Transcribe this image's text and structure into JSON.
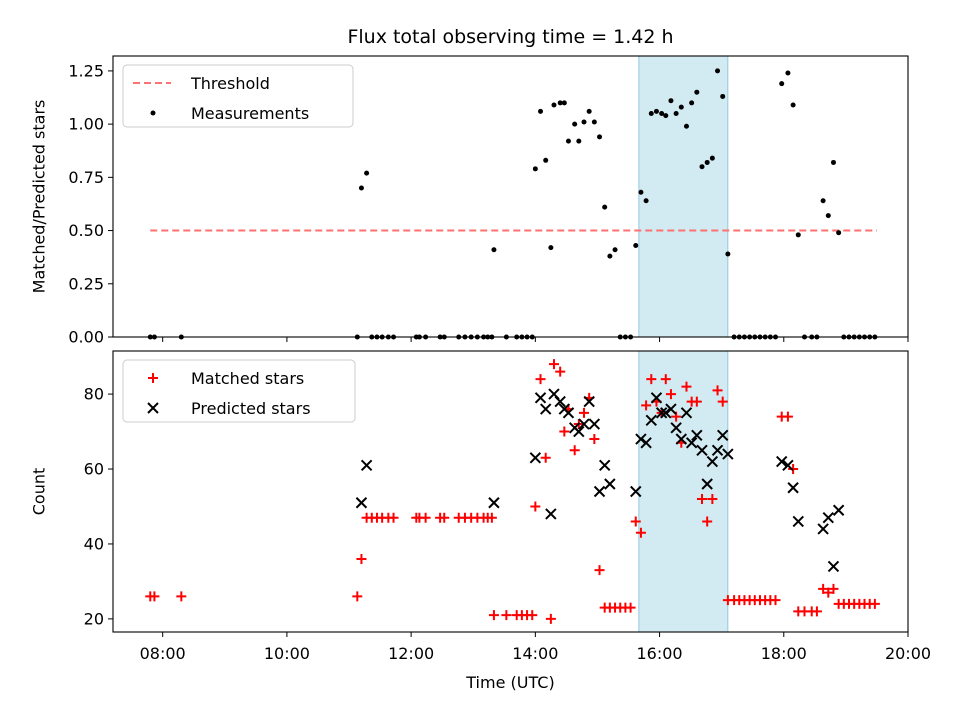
{
  "chart_data": [
    {
      "type": "scatter",
      "title": "Flux total observing time = 1.42 h",
      "xlabel": "",
      "ylabel": "Matched/Predicted stars",
      "xlim": [
        "07:12",
        "20:00"
      ],
      "ylim": [
        0,
        1.32
      ],
      "yticks": [
        "0.00",
        "0.25",
        "0.50",
        "0.75",
        "1.00",
        "1.25"
      ],
      "ytick_values": [
        0,
        0.25,
        0.5,
        0.75,
        1.0,
        1.25
      ],
      "xticks": [
        "08:00",
        "10:00",
        "12:00",
        "14:00",
        "16:00",
        "18:00",
        "20:00"
      ],
      "show_xticklabels": false,
      "grid": false,
      "legend_position": "upper-left",
      "shaded_span": {
        "x": [
          "15:40",
          "17:06"
        ],
        "color": "#add8e6"
      },
      "series": [
        {
          "name": "Threshold",
          "kind": "dashed-line",
          "color": "#ff7070",
          "points": [
            [
              "07:48",
              0.5
            ],
            [
              "19:30",
              0.5
            ]
          ]
        },
        {
          "name": "Measurements",
          "kind": "dot",
          "color": "#000000",
          "points": [
            [
              "07:48",
              0
            ],
            [
              "07:52",
              0
            ],
            [
              "08:18",
              0
            ],
            [
              "11:08",
              0
            ],
            [
              "11:12",
              0.7
            ],
            [
              "11:17",
              0.77
            ],
            [
              "11:22",
              0
            ],
            [
              "11:27",
              0
            ],
            [
              "11:32",
              0
            ],
            [
              "11:38",
              0
            ],
            [
              "11:43",
              0
            ],
            [
              "12:05",
              0
            ],
            [
              "12:08",
              0
            ],
            [
              "12:14",
              0
            ],
            [
              "12:28",
              0
            ],
            [
              "12:32",
              0
            ],
            [
              "12:46",
              0
            ],
            [
              "12:52",
              0
            ],
            [
              "12:58",
              0
            ],
            [
              "13:04",
              0
            ],
            [
              "13:10",
              0
            ],
            [
              "13:14",
              0
            ],
            [
              "13:18",
              0
            ],
            [
              "13:20",
              0.41
            ],
            [
              "13:32",
              0
            ],
            [
              "13:42",
              0
            ],
            [
              "13:47",
              0
            ],
            [
              "13:52",
              0
            ],
            [
              "13:57",
              0
            ],
            [
              "14:00",
              0.79
            ],
            [
              "14:05",
              1.06
            ],
            [
              "14:10",
              0.83
            ],
            [
              "14:15",
              0.42
            ],
            [
              "14:18",
              1.09
            ],
            [
              "14:24",
              1.1
            ],
            [
              "14:28",
              1.1
            ],
            [
              "14:32",
              0.92
            ],
            [
              "14:38",
              1.0
            ],
            [
              "14:42",
              0.92
            ],
            [
              "14:47",
              1.01
            ],
            [
              "14:52",
              1.06
            ],
            [
              "14:57",
              1.01
            ],
            [
              "15:02",
              0.94
            ],
            [
              "15:07",
              0.61
            ],
            [
              "15:12",
              0.38
            ],
            [
              "15:17",
              0.41
            ],
            [
              "15:22",
              0
            ],
            [
              "15:27",
              0
            ],
            [
              "15:32",
              0
            ],
            [
              "15:37",
              0.43
            ],
            [
              "15:42",
              0.68
            ],
            [
              "15:47",
              0.64
            ],
            [
              "15:52",
              1.05
            ],
            [
              "15:57",
              1.06
            ],
            [
              "16:02",
              1.05
            ],
            [
              "16:06",
              1.04
            ],
            [
              "16:11",
              1.11
            ],
            [
              "16:16",
              1.05
            ],
            [
              "16:21",
              1.08
            ],
            [
              "16:26",
              0.99
            ],
            [
              "16:31",
              1.1
            ],
            [
              "16:36",
              1.15
            ],
            [
              "16:41",
              0.8
            ],
            [
              "16:46",
              0.82
            ],
            [
              "16:51",
              0.84
            ],
            [
              "16:56",
              1.25
            ],
            [
              "17:01",
              1.13
            ],
            [
              "17:06",
              0.39
            ],
            [
              "17:12",
              0
            ],
            [
              "17:17",
              0
            ],
            [
              "17:22",
              0
            ],
            [
              "17:27",
              0
            ],
            [
              "17:32",
              0
            ],
            [
              "17:37",
              0
            ],
            [
              "17:42",
              0
            ],
            [
              "17:47",
              0
            ],
            [
              "17:52",
              0
            ],
            [
              "17:58",
              1.19
            ],
            [
              "18:04",
              1.24
            ],
            [
              "18:09",
              1.09
            ],
            [
              "18:14",
              0.48
            ],
            [
              "18:20",
              0
            ],
            [
              "18:27",
              0
            ],
            [
              "18:32",
              0
            ],
            [
              "18:38",
              0.64
            ],
            [
              "18:43",
              0.57
            ],
            [
              "18:48",
              0.82
            ],
            [
              "18:53",
              0.49
            ],
            [
              "18:58",
              0
            ],
            [
              "19:03",
              0
            ],
            [
              "19:08",
              0
            ],
            [
              "19:13",
              0
            ],
            [
              "19:18",
              0
            ],
            [
              "19:23",
              0
            ],
            [
              "19:28",
              0
            ]
          ]
        }
      ]
    },
    {
      "type": "scatter",
      "title": "",
      "xlabel": "Time (UTC)",
      "ylabel": "Count",
      "xlim": [
        "07:12",
        "20:00"
      ],
      "ylim": [
        16.5,
        91.5
      ],
      "yticks": [
        "20",
        "40",
        "60",
        "80"
      ],
      "ytick_values": [
        20,
        40,
        60,
        80
      ],
      "xticks": [
        "08:00",
        "10:00",
        "12:00",
        "14:00",
        "16:00",
        "18:00",
        "20:00"
      ],
      "show_xticklabels": true,
      "grid": false,
      "legend_position": "upper-left",
      "shaded_span": {
        "x": [
          "15:40",
          "17:06"
        ],
        "color": "#add8e6"
      },
      "series": [
        {
          "name": "Matched stars",
          "kind": "plus",
          "color": "#ff0000",
          "points": [
            [
              "07:48",
              26
            ],
            [
              "07:52",
              26
            ],
            [
              "08:18",
              26
            ],
            [
              "11:08",
              26
            ],
            [
              "11:12",
              36
            ],
            [
              "11:17",
              47
            ],
            [
              "11:22",
              47
            ],
            [
              "11:27",
              47
            ],
            [
              "11:32",
              47
            ],
            [
              "11:38",
              47
            ],
            [
              "11:43",
              47
            ],
            [
              "12:05",
              47
            ],
            [
              "12:08",
              47
            ],
            [
              "12:14",
              47
            ],
            [
              "12:28",
              47
            ],
            [
              "12:32",
              47
            ],
            [
              "12:46",
              47
            ],
            [
              "12:52",
              47
            ],
            [
              "12:58",
              47
            ],
            [
              "13:04",
              47
            ],
            [
              "13:10",
              47
            ],
            [
              "13:14",
              47
            ],
            [
              "13:18",
              47
            ],
            [
              "13:20",
              21
            ],
            [
              "13:32",
              21
            ],
            [
              "13:42",
              21
            ],
            [
              "13:47",
              21
            ],
            [
              "13:52",
              21
            ],
            [
              "13:57",
              21
            ],
            [
              "14:00",
              50
            ],
            [
              "14:05",
              84
            ],
            [
              "14:10",
              63
            ],
            [
              "14:15",
              20
            ],
            [
              "14:18",
              88
            ],
            [
              "14:24",
              86
            ],
            [
              "14:28",
              70
            ],
            [
              "14:32",
              76
            ],
            [
              "14:38",
              65
            ],
            [
              "14:42",
              72
            ],
            [
              "14:47",
              75
            ],
            [
              "14:52",
              79
            ],
            [
              "14:57",
              68
            ],
            [
              "15:02",
              33
            ],
            [
              "15:07",
              23
            ],
            [
              "15:12",
              23
            ],
            [
              "15:17",
              23
            ],
            [
              "15:22",
              23
            ],
            [
              "15:27",
              23
            ],
            [
              "15:32",
              23
            ],
            [
              "15:37",
              46
            ],
            [
              "15:42",
              43
            ],
            [
              "15:47",
              77
            ],
            [
              "15:52",
              84
            ],
            [
              "15:57",
              78
            ],
            [
              "16:02",
              75
            ],
            [
              "16:06",
              84
            ],
            [
              "16:11",
              80
            ],
            [
              "16:16",
              74
            ],
            [
              "16:21",
              67
            ],
            [
              "16:26",
              82
            ],
            [
              "16:31",
              78
            ],
            [
              "16:36",
              78
            ],
            [
              "16:41",
              52
            ],
            [
              "16:46",
              46
            ],
            [
              "16:51",
              52
            ],
            [
              "16:56",
              81
            ],
            [
              "17:01",
              78
            ],
            [
              "17:06",
              25
            ],
            [
              "17:12",
              25
            ],
            [
              "17:17",
              25
            ],
            [
              "17:22",
              25
            ],
            [
              "17:27",
              25
            ],
            [
              "17:32",
              25
            ],
            [
              "17:37",
              25
            ],
            [
              "17:42",
              25
            ],
            [
              "17:47",
              25
            ],
            [
              "17:52",
              25
            ],
            [
              "17:58",
              74
            ],
            [
              "18:04",
              74
            ],
            [
              "18:09",
              60
            ],
            [
              "18:14",
              22
            ],
            [
              "18:20",
              22
            ],
            [
              "18:27",
              22
            ],
            [
              "18:32",
              22
            ],
            [
              "18:38",
              28
            ],
            [
              "18:43",
              27
            ],
            [
              "18:48",
              28
            ],
            [
              "18:53",
              24
            ],
            [
              "18:58",
              24
            ],
            [
              "19:03",
              24
            ],
            [
              "19:08",
              24
            ],
            [
              "19:13",
              24
            ],
            [
              "19:18",
              24
            ],
            [
              "19:23",
              24
            ],
            [
              "19:28",
              24
            ]
          ]
        },
        {
          "name": "Predicted stars",
          "kind": "x",
          "color": "#000000",
          "points": [
            [
              "11:12",
              51
            ],
            [
              "11:17",
              61
            ],
            [
              "13:20",
              51
            ],
            [
              "14:00",
              63
            ],
            [
              "14:05",
              79
            ],
            [
              "14:10",
              76
            ],
            [
              "14:15",
              48
            ],
            [
              "14:18",
              80
            ],
            [
              "14:24",
              78
            ],
            [
              "14:28",
              76
            ],
            [
              "14:32",
              75
            ],
            [
              "14:38",
              71
            ],
            [
              "14:42",
              70
            ],
            [
              "14:47",
              72
            ],
            [
              "14:52",
              78
            ],
            [
              "14:57",
              72
            ],
            [
              "15:02",
              54
            ],
            [
              "15:07",
              61
            ],
            [
              "15:12",
              56
            ],
            [
              "15:37",
              54
            ],
            [
              "15:42",
              68
            ],
            [
              "15:47",
              67
            ],
            [
              "15:52",
              73
            ],
            [
              "15:57",
              79
            ],
            [
              "16:02",
              75
            ],
            [
              "16:06",
              75
            ],
            [
              "16:11",
              76
            ],
            [
              "16:16",
              71
            ],
            [
              "16:21",
              68
            ],
            [
              "16:26",
              75
            ],
            [
              "16:31",
              67
            ],
            [
              "16:36",
              69
            ],
            [
              "16:41",
              65
            ],
            [
              "16:46",
              56
            ],
            [
              "16:51",
              62
            ],
            [
              "16:56",
              65
            ],
            [
              "17:01",
              69
            ],
            [
              "17:06",
              64
            ],
            [
              "17:58",
              62
            ],
            [
              "18:04",
              61
            ],
            [
              "18:09",
              55
            ],
            [
              "18:14",
              46
            ],
            [
              "18:38",
              44
            ],
            [
              "18:43",
              47
            ],
            [
              "18:48",
              34
            ],
            [
              "18:53",
              49
            ]
          ]
        }
      ]
    }
  ]
}
